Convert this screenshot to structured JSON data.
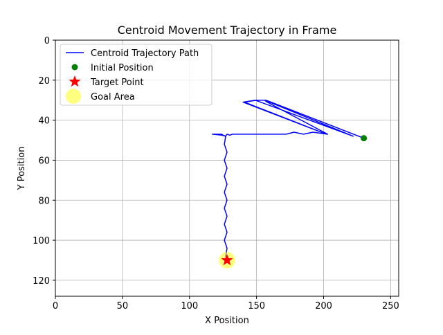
{
  "chart_data": {
    "type": "line",
    "title": "Centroid Movement Trajectory in Frame",
    "xlabel": "X Position",
    "ylabel": "Y Position",
    "xlim": [
      0,
      256
    ],
    "ylim": [
      0,
      128
    ],
    "y_inverted": true,
    "grid": true,
    "xticks": [
      0,
      50,
      100,
      150,
      200,
      250
    ],
    "yticks": [
      0,
      20,
      40,
      60,
      80,
      100,
      120
    ],
    "legend_position": "upper-left",
    "series": [
      {
        "name": "Centroid Trajectory Path",
        "kind": "line",
        "color": "#0000ff",
        "points": [
          [
            230,
            49
          ],
          [
            157,
            30
          ],
          [
            155,
            30
          ],
          [
            150,
            30
          ],
          [
            141,
            31
          ],
          [
            202,
            47
          ],
          [
            140,
            31
          ],
          [
            149,
            30
          ],
          [
            222,
            48
          ],
          [
            156,
            30
          ],
          [
            158,
            31
          ],
          [
            203,
            47
          ],
          [
            192,
            46
          ],
          [
            185,
            47
          ],
          [
            178,
            46
          ],
          [
            172,
            47
          ],
          [
            145,
            47
          ],
          [
            138,
            47
          ],
          [
            135,
            47
          ],
          [
            132,
            47
          ],
          [
            130,
            47.5
          ],
          [
            128,
            47
          ],
          [
            127,
            48
          ],
          [
            125,
            47.5
          ],
          [
            124,
            47
          ],
          [
            119,
            47
          ],
          [
            117,
            47
          ],
          [
            124,
            47.5
          ],
          [
            127,
            48
          ],
          [
            126,
            52
          ],
          [
            128,
            56
          ],
          [
            126,
            60
          ],
          [
            128,
            64
          ],
          [
            126,
            68
          ],
          [
            128,
            72
          ],
          [
            126,
            76
          ],
          [
            128,
            80
          ],
          [
            126,
            84
          ],
          [
            128,
            88
          ],
          [
            126,
            92
          ],
          [
            128,
            96
          ],
          [
            126,
            100
          ],
          [
            128,
            104
          ],
          [
            127,
            108
          ],
          [
            128,
            110
          ]
        ]
      },
      {
        "name": "Initial Position",
        "kind": "marker",
        "marker": "circle",
        "color": "#008000",
        "points": [
          [
            230,
            49
          ]
        ]
      },
      {
        "name": "Target Point",
        "kind": "marker",
        "marker": "star",
        "color": "#ff0000",
        "points": [
          [
            128,
            110
          ]
        ]
      },
      {
        "name": "Goal Area",
        "kind": "marker",
        "marker": "circle",
        "color": "#ffff00",
        "alpha": 0.5,
        "points": [
          [
            128,
            110
          ]
        ]
      }
    ]
  }
}
